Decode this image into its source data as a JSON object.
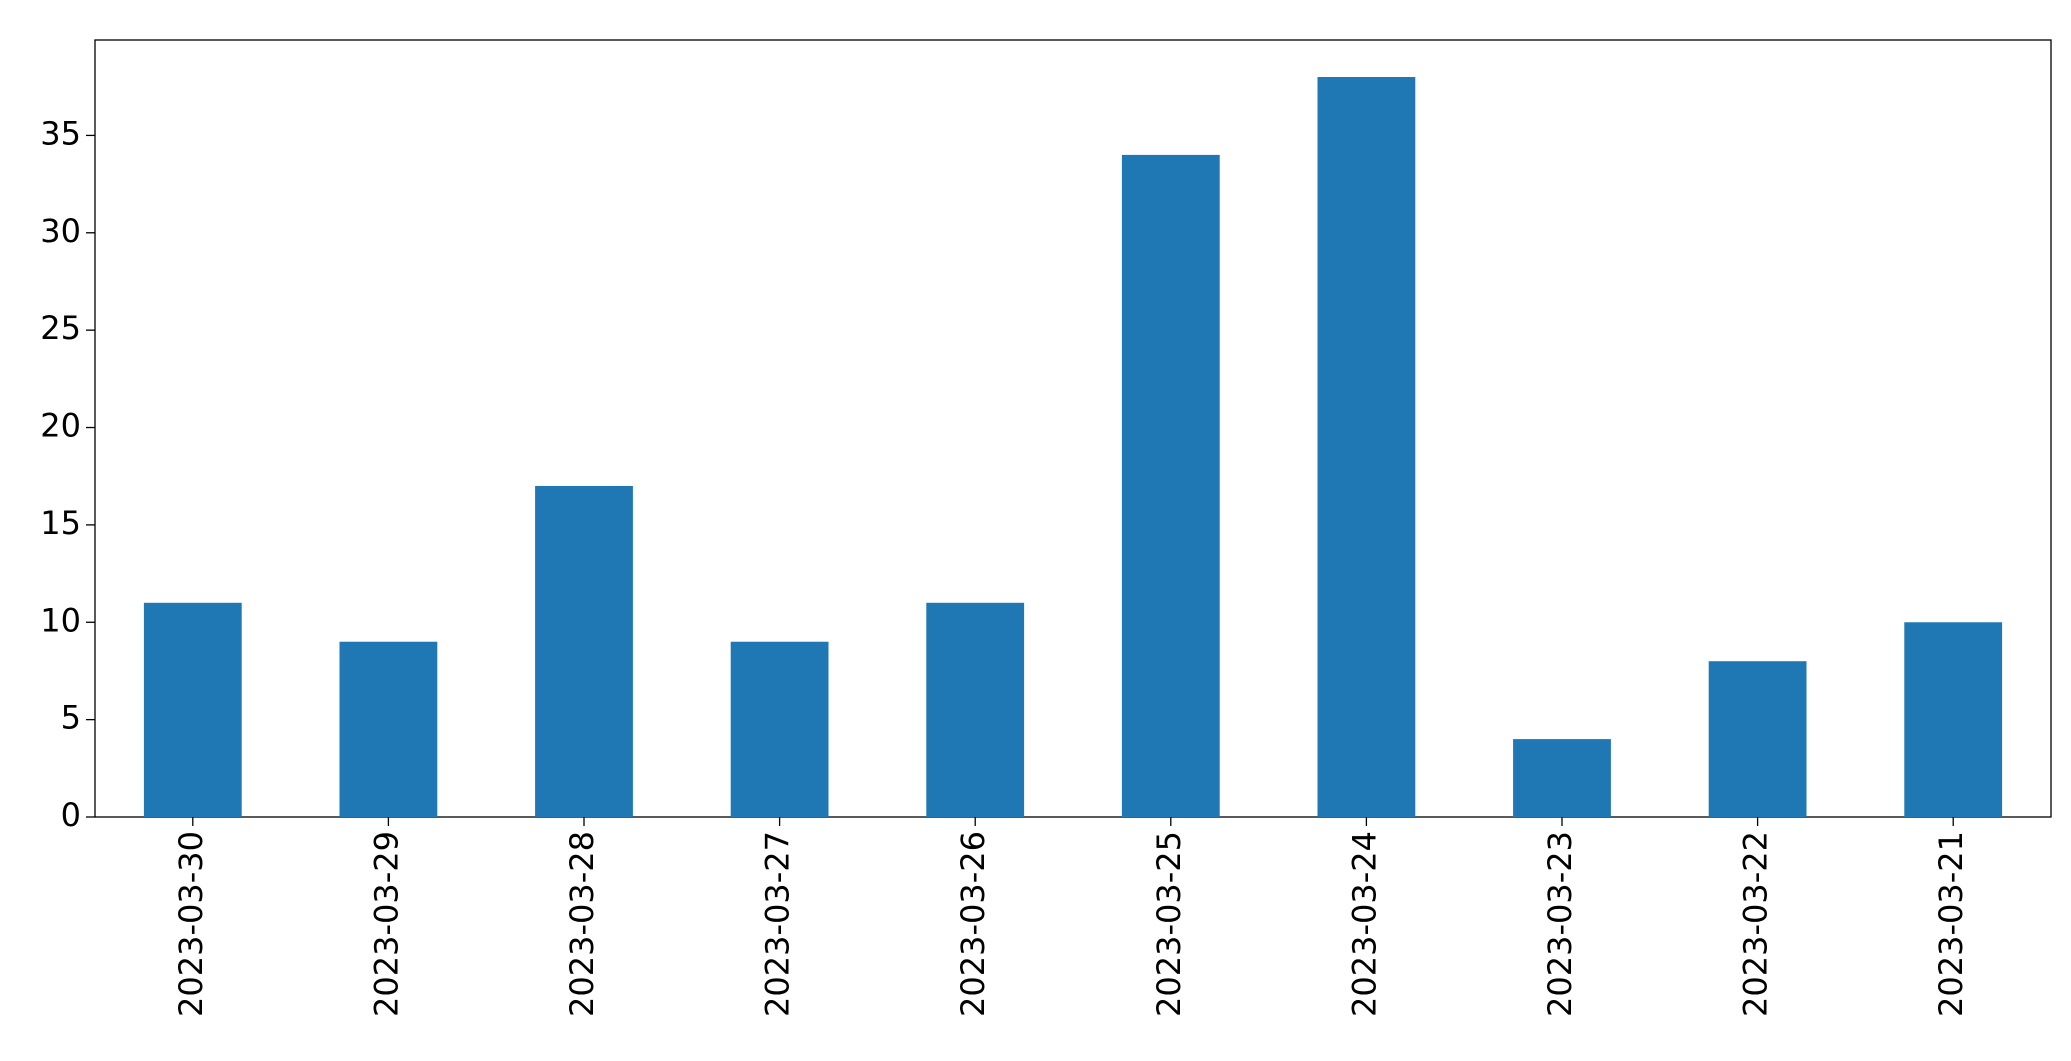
{
  "chart_data": {
    "type": "bar",
    "categories": [
      "2023-03-30",
      "2023-03-29",
      "2023-03-28",
      "2023-03-27",
      "2023-03-26",
      "2023-03-25",
      "2023-03-24",
      "2023-03-23",
      "2023-03-22",
      "2023-03-21"
    ],
    "values": [
      11,
      9,
      17,
      9,
      11,
      34,
      38,
      4,
      8,
      10
    ],
    "color": "#1f77b4",
    "ylim": [
      0,
      39.9
    ],
    "yticks": [
      0,
      5,
      10,
      15,
      20,
      25,
      30,
      35
    ],
    "grid": false
  }
}
